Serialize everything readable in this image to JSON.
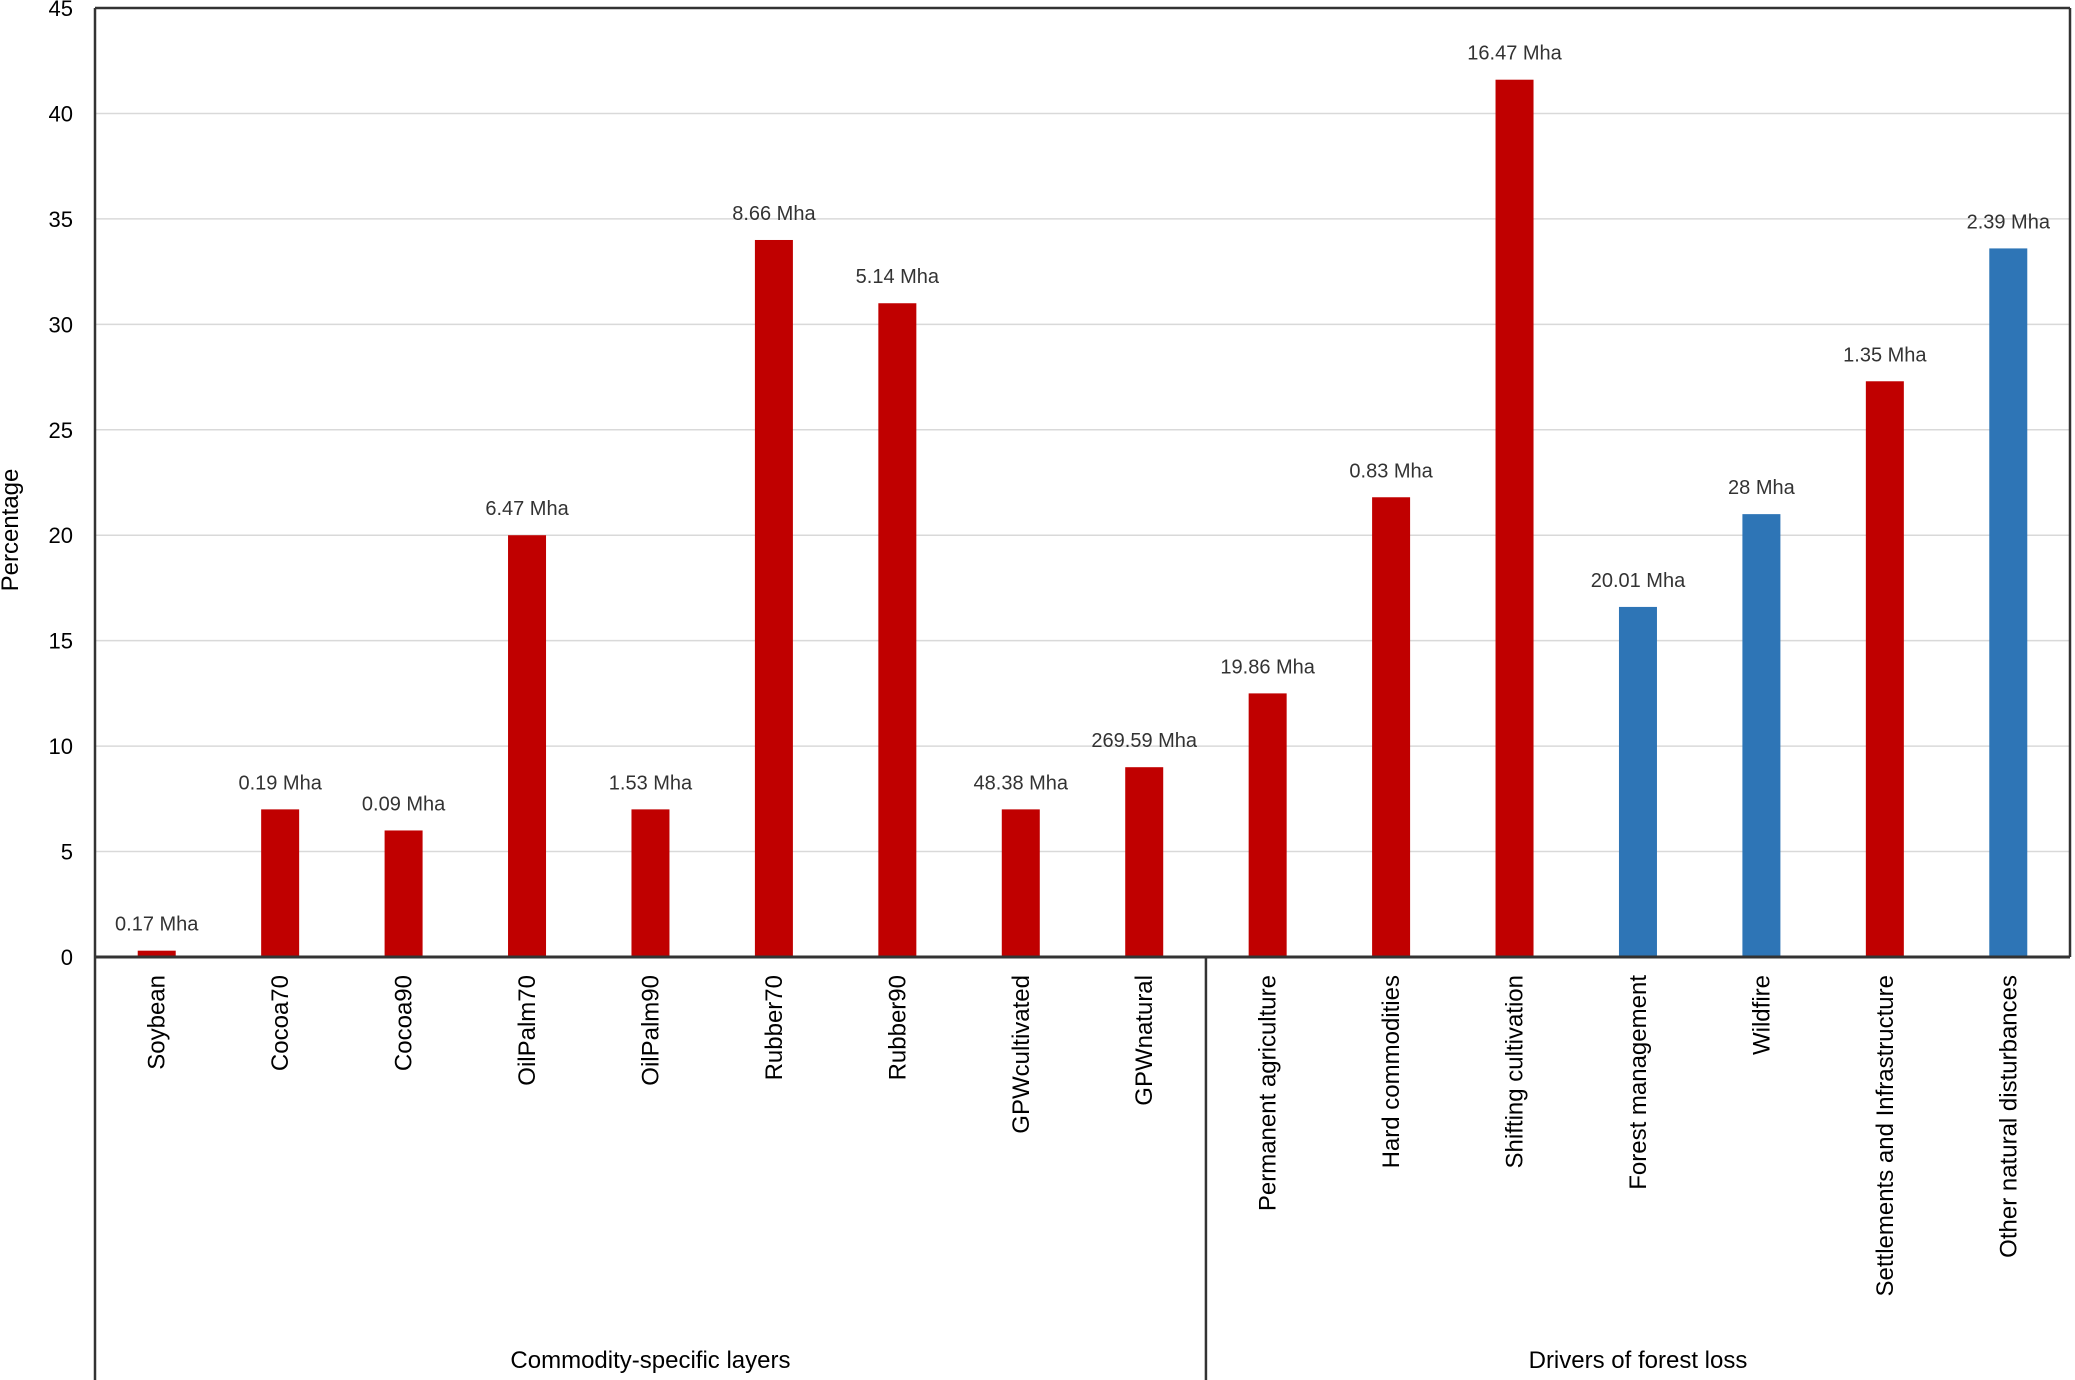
{
  "chart_data": {
    "type": "bar",
    "ylabel": "Percentage",
    "ylim": [
      0,
      45
    ],
    "yticks": [
      0,
      5,
      10,
      15,
      20,
      25,
      30,
      35,
      40,
      45
    ],
    "grid": true,
    "categories": [
      "Soybean",
      "Cocoa70",
      "Cocoa90",
      "OilPalm70",
      "OilPalm90",
      "Rubber70",
      "Rubber90",
      "GPWcultivated",
      "GPWnatural",
      "Permanent agriculture",
      "Hard commodities",
      "Shifting cultivation",
      "Forest management",
      "Wildfire",
      "Settlements and Infrastructure",
      "Other natural disturbances"
    ],
    "values": [
      0.3,
      7,
      6,
      20,
      7,
      34,
      31,
      7,
      9,
      12.5,
      21.8,
      41.6,
      16.6,
      21,
      27.3,
      33.6
    ],
    "data_labels": [
      "0.17 Mha",
      "0.19 Mha",
      "0.09 Mha",
      "6.47 Mha",
      "1.53 Mha",
      "8.66 Mha",
      "5.14 Mha",
      "48.38 Mha",
      "269.59 Mha",
      "19.86 Mha",
      "0.83 Mha",
      "16.47 Mha",
      "20.01 Mha",
      "28 Mha",
      "1.35 Mha",
      "2.39 Mha"
    ],
    "bar_colors": [
      "#c00000",
      "#c00000",
      "#c00000",
      "#c00000",
      "#c00000",
      "#c00000",
      "#c00000",
      "#c00000",
      "#c00000",
      "#c00000",
      "#c00000",
      "#c00000",
      "#2e75b6",
      "#2e75b6",
      "#c00000",
      "#2e75b6"
    ],
    "groups": [
      {
        "label": "Commodity-specific layers",
        "start": 0,
        "end": 8
      },
      {
        "label": "Drivers of forest loss",
        "start": 9,
        "end": 15
      }
    ]
  }
}
